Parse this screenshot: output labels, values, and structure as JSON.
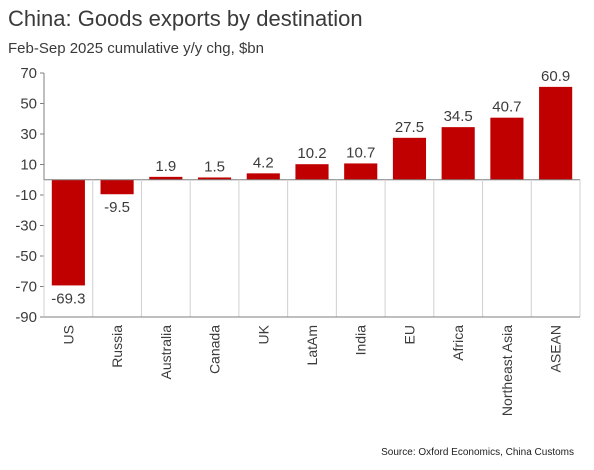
{
  "chart_data": {
    "type": "bar",
    "title": "China: Goods exports by destination",
    "subtitle": "Feb-Sep 2025 cumulative  y/y chg, $bn",
    "source": "Source: Oxford Economics, China Customs",
    "categories": [
      "US",
      "Russia",
      "Australia",
      "Canada",
      "UK",
      "LatAm",
      "India",
      "EU",
      "Africa",
      "Northeast Asia",
      "ASEAN"
    ],
    "values": [
      -69.3,
      -9.5,
      1.9,
      1.5,
      4.2,
      10.2,
      10.7,
      27.5,
      34.5,
      40.7,
      60.9
    ],
    "value_labels": [
      "-69.3",
      "-9.5",
      "1.9",
      "1.5",
      "4.2",
      "10.2",
      "10.7",
      "27.5",
      "34.5",
      "40.7",
      "60.9"
    ],
    "yticks": [
      "70",
      "50",
      "30",
      "10",
      "-10",
      "-30",
      "-50",
      "-70",
      "-90"
    ],
    "ylim": [
      -90,
      70
    ],
    "grid": false,
    "bar_color": "#c00000"
  }
}
